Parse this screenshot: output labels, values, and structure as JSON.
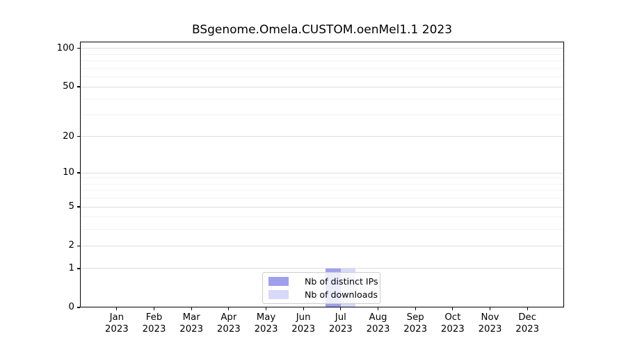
{
  "title": "BSgenome.Omela.CUSTOM.oenMel1.1 2023",
  "legend": {
    "items": [
      {
        "label": "Nb of distinct IPs",
        "color": "#9f9fec"
      },
      {
        "label": "Nb of downloads",
        "color": "#d8d8f7"
      }
    ]
  },
  "chart_data": {
    "type": "bar",
    "title": "BSgenome.Omela.CUSTOM.oenMel1.1 2023",
    "categories": [
      "Jan",
      "Feb",
      "Mar",
      "Apr",
      "May",
      "Jun",
      "Jul",
      "Aug",
      "Sep",
      "Oct",
      "Nov",
      "Dec"
    ],
    "category_year": "2023",
    "series": [
      {
        "name": "Nb of distinct IPs",
        "color": "#9f9fec",
        "values": [
          0,
          0,
          0,
          0,
          0,
          0,
          1,
          0,
          0,
          0,
          0,
          0
        ]
      },
      {
        "name": "Nb of downloads",
        "color": "#d8d8f7",
        "values": [
          0,
          0,
          0,
          0,
          0,
          0,
          1,
          0,
          0,
          0,
          0,
          0
        ]
      }
    ],
    "yscale": "log1p",
    "ylim": [
      0,
      113
    ],
    "yticks": [
      0,
      1,
      2,
      5,
      10,
      20,
      50,
      100
    ],
    "yticks_minor": [
      3,
      4,
      6,
      7,
      8,
      9,
      30,
      40,
      60,
      70,
      80,
      90
    ],
    "grid": "horizontal",
    "grid_major_color": "#dcdcdc",
    "grid_minor_color": "#f2f2f2",
    "axis_color": "#000000",
    "legend_position": "bottom-center"
  }
}
